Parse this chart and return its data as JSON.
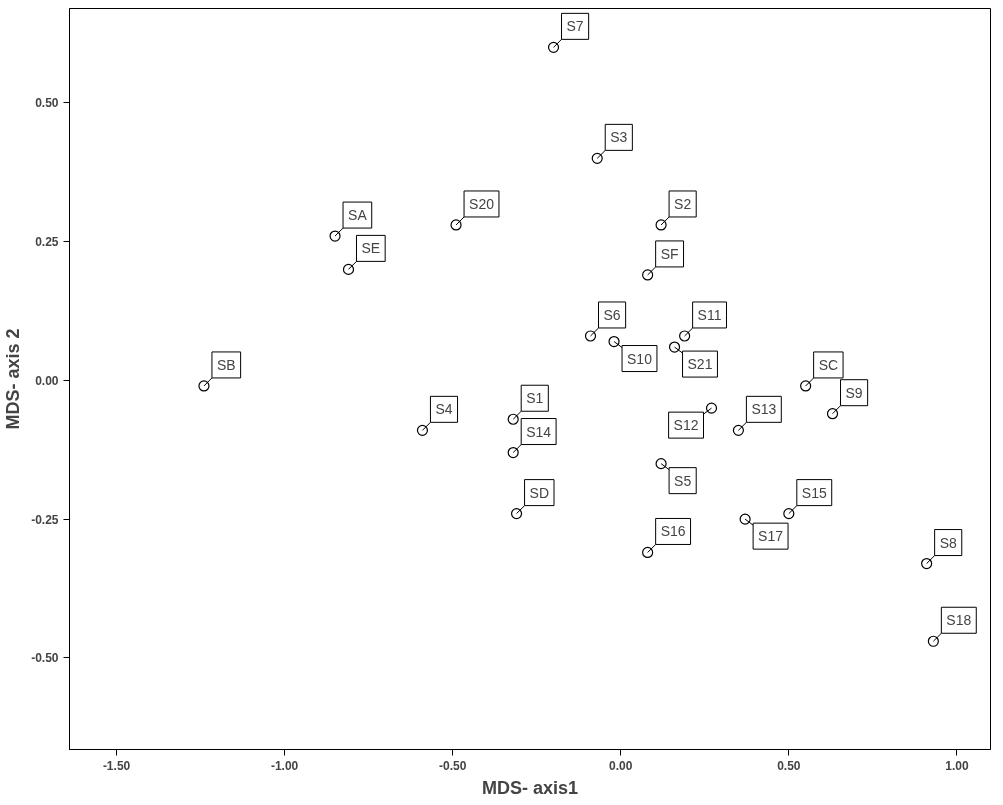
{
  "chart_data": {
    "type": "scatter",
    "xlabel": "MDS- axis1",
    "ylabel": "MDS- axis 2",
    "x": [
      -0.2,
      -0.07,
      -0.49,
      -0.85,
      -0.81,
      0.12,
      0.08,
      -0.09,
      -0.02,
      0.16,
      0.19,
      -1.24,
      0.55,
      0.63,
      -0.32,
      -0.59,
      -0.32,
      0.27,
      0.35,
      0.12,
      -0.31,
      0.5,
      0.37,
      0.08,
      0.91,
      0.93
    ],
    "series": [
      {
        "color": "#000000",
        "values": [
          0.6,
          0.4,
          0.28,
          0.26,
          0.2,
          0.28,
          0.19,
          0.08,
          0.07,
          0.06,
          0.08,
          -0.01,
          -0.01,
          -0.06,
          -0.07,
          -0.09,
          -0.13,
          -0.05,
          -0.09,
          -0.15,
          -0.24,
          -0.24,
          -0.25,
          -0.31,
          -0.33,
          -0.47
        ]
      }
    ],
    "annotations": [
      {
        "text": "S7",
        "x": -0.2,
        "y": 0.6
      },
      {
        "text": "S3",
        "x": -0.07,
        "y": 0.4
      },
      {
        "text": "S20",
        "x": -0.49,
        "y": 0.28
      },
      {
        "text": "SA",
        "x": -0.85,
        "y": 0.26
      },
      {
        "text": "SE",
        "x": -0.81,
        "y": 0.2
      },
      {
        "text": "S2",
        "x": 0.12,
        "y": 0.28
      },
      {
        "text": "SF",
        "x": 0.08,
        "y": 0.19
      },
      {
        "text": "S6",
        "x": -0.09,
        "y": 0.08
      },
      {
        "text": "S10",
        "x": -0.02,
        "y": 0.07
      },
      {
        "text": "S21",
        "x": 0.16,
        "y": 0.06
      },
      {
        "text": "S11",
        "x": 0.19,
        "y": 0.08
      },
      {
        "text": "SB",
        "x": -1.24,
        "y": -0.01
      },
      {
        "text": "SC",
        "x": 0.55,
        "y": -0.01
      },
      {
        "text": "S9",
        "x": 0.63,
        "y": -0.06
      },
      {
        "text": "S1",
        "x": -0.32,
        "y": -0.07
      },
      {
        "text": "S4",
        "x": -0.59,
        "y": -0.09
      },
      {
        "text": "S14",
        "x": -0.32,
        "y": -0.13
      },
      {
        "text": "S12",
        "x": 0.27,
        "y": -0.05
      },
      {
        "text": "S13",
        "x": 0.35,
        "y": -0.09
      },
      {
        "text": "S5",
        "x": 0.12,
        "y": -0.15
      },
      {
        "text": "SD",
        "x": -0.31,
        "y": -0.24
      },
      {
        "text": "S15",
        "x": 0.5,
        "y": -0.24
      },
      {
        "text": "S17",
        "x": 0.37,
        "y": -0.25
      },
      {
        "text": "S16",
        "x": 0.08,
        "y": -0.31
      },
      {
        "text": "S8",
        "x": 0.91,
        "y": -0.33
      },
      {
        "text": "S18",
        "x": 0.93,
        "y": -0.47
      }
    ],
    "xlim": [
      -1.64,
      1.1
    ],
    "ylim": [
      -0.665,
      0.67
    ],
    "xticks": [
      {
        "value": -1.5,
        "label": "-1.50"
      },
      {
        "value": -1.0,
        "label": "-1.00"
      },
      {
        "value": -0.5,
        "label": "-0.50"
      },
      {
        "value": 0,
        "label": "0.00"
      },
      {
        "value": 0.5,
        "label": "0.50"
      },
      {
        "value": 1.0,
        "label": "1.00"
      }
    ],
    "yticks": [
      {
        "value": -0.5,
        "label": "-0.50"
      },
      {
        "value": -0.25,
        "label": "-0.25"
      },
      {
        "value": 0,
        "label": "0.00"
      },
      {
        "value": 0.25,
        "label": "0.25"
      },
      {
        "value": 0.5,
        "label": "0.50"
      }
    ],
    "grid": false,
    "marker": "circle"
  }
}
